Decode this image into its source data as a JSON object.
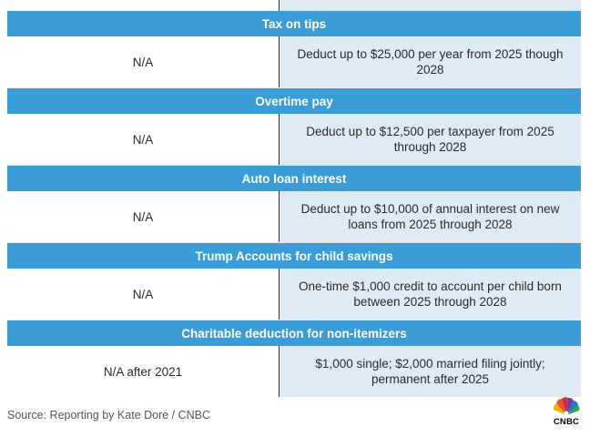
{
  "sections": [
    {
      "header": "Tax on tips",
      "left": "N/A",
      "right": "Deduct up to $25,000 per year from 2025 though 2028"
    },
    {
      "header": "Overtime pay",
      "left": "N/A",
      "right": "Deduct up to $12,500 per taxpayer from 2025 through 2028"
    },
    {
      "header": "Auto loan interest",
      "left": "N/A",
      "right": "Deduct up to $10,000 of annual interest on new loans from 2025 through 2028"
    },
    {
      "header": "Trump Accounts for child savings",
      "left": "N/A",
      "right": "One-time $1,000 credit to account per child born between 2025 through 2028"
    },
    {
      "header": "Charitable deduction for non-itemizers",
      "left": "N/A after 2021",
      "right": "$1,000 single; $2,000 married filing jointly; permanent after 2025"
    }
  ],
  "source": "Source: Reporting by Kate Dore / CNBC",
  "logo": {
    "text": "CNBC",
    "icon": "peacock-icon"
  },
  "colors": {
    "header_bg": "#3a9dd8",
    "right_cell_bg": "#deebf5",
    "divider": "#333333"
  }
}
